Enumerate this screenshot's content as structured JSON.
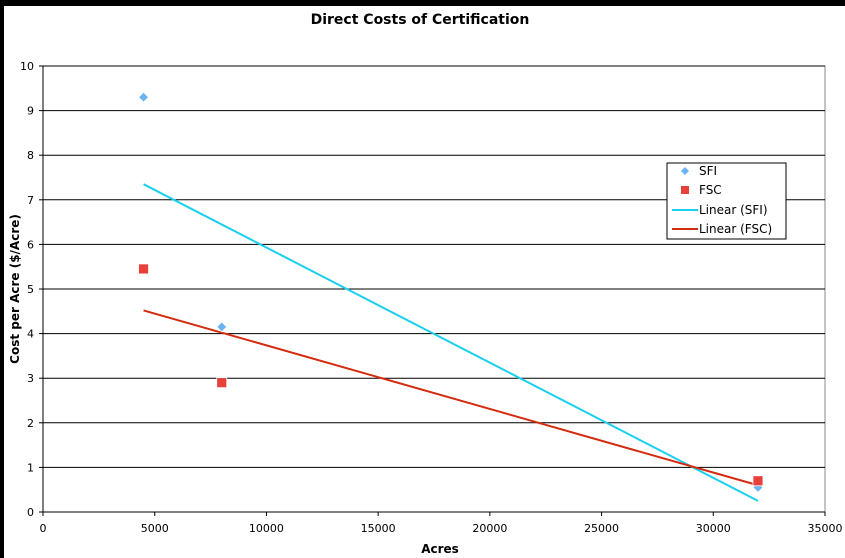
{
  "chart_data": {
    "type": "scatter",
    "title": "Direct Costs of Certification",
    "xlabel": "Acres",
    "ylabel": "Cost per Acre ($/Acre)",
    "xlim": [
      0,
      35000
    ],
    "ylim": [
      0,
      10
    ],
    "xticks": [
      0,
      5000,
      10000,
      15000,
      20000,
      25000,
      30000,
      35000
    ],
    "yticks": [
      0,
      1,
      2,
      3,
      4,
      5,
      6,
      7,
      8,
      9,
      10
    ],
    "grid": "horizontal",
    "legend_position": "right",
    "series": [
      {
        "name": "SFI",
        "marker": "diamond",
        "color": "#6CB4F0",
        "points": [
          {
            "x": 4500,
            "y": 9.3
          },
          {
            "x": 8000,
            "y": 4.15
          },
          {
            "x": 32000,
            "y": 0.55
          }
        ]
      },
      {
        "name": "FSC",
        "marker": "square",
        "color": "#E8403A",
        "points": [
          {
            "x": 4500,
            "y": 5.45
          },
          {
            "x": 8000,
            "y": 2.9
          },
          {
            "x": 32000,
            "y": 0.7
          }
        ]
      }
    ],
    "trendlines": [
      {
        "name": "Linear (SFI)",
        "color": "#1AD0EE",
        "x": [
          4500,
          32000
        ],
        "y": [
          7.35,
          0.25
        ]
      },
      {
        "name": "Linear (FSC)",
        "color": "#D42A0E",
        "x": [
          4500,
          32000
        ],
        "y": [
          4.52,
          0.6
        ]
      }
    ]
  }
}
